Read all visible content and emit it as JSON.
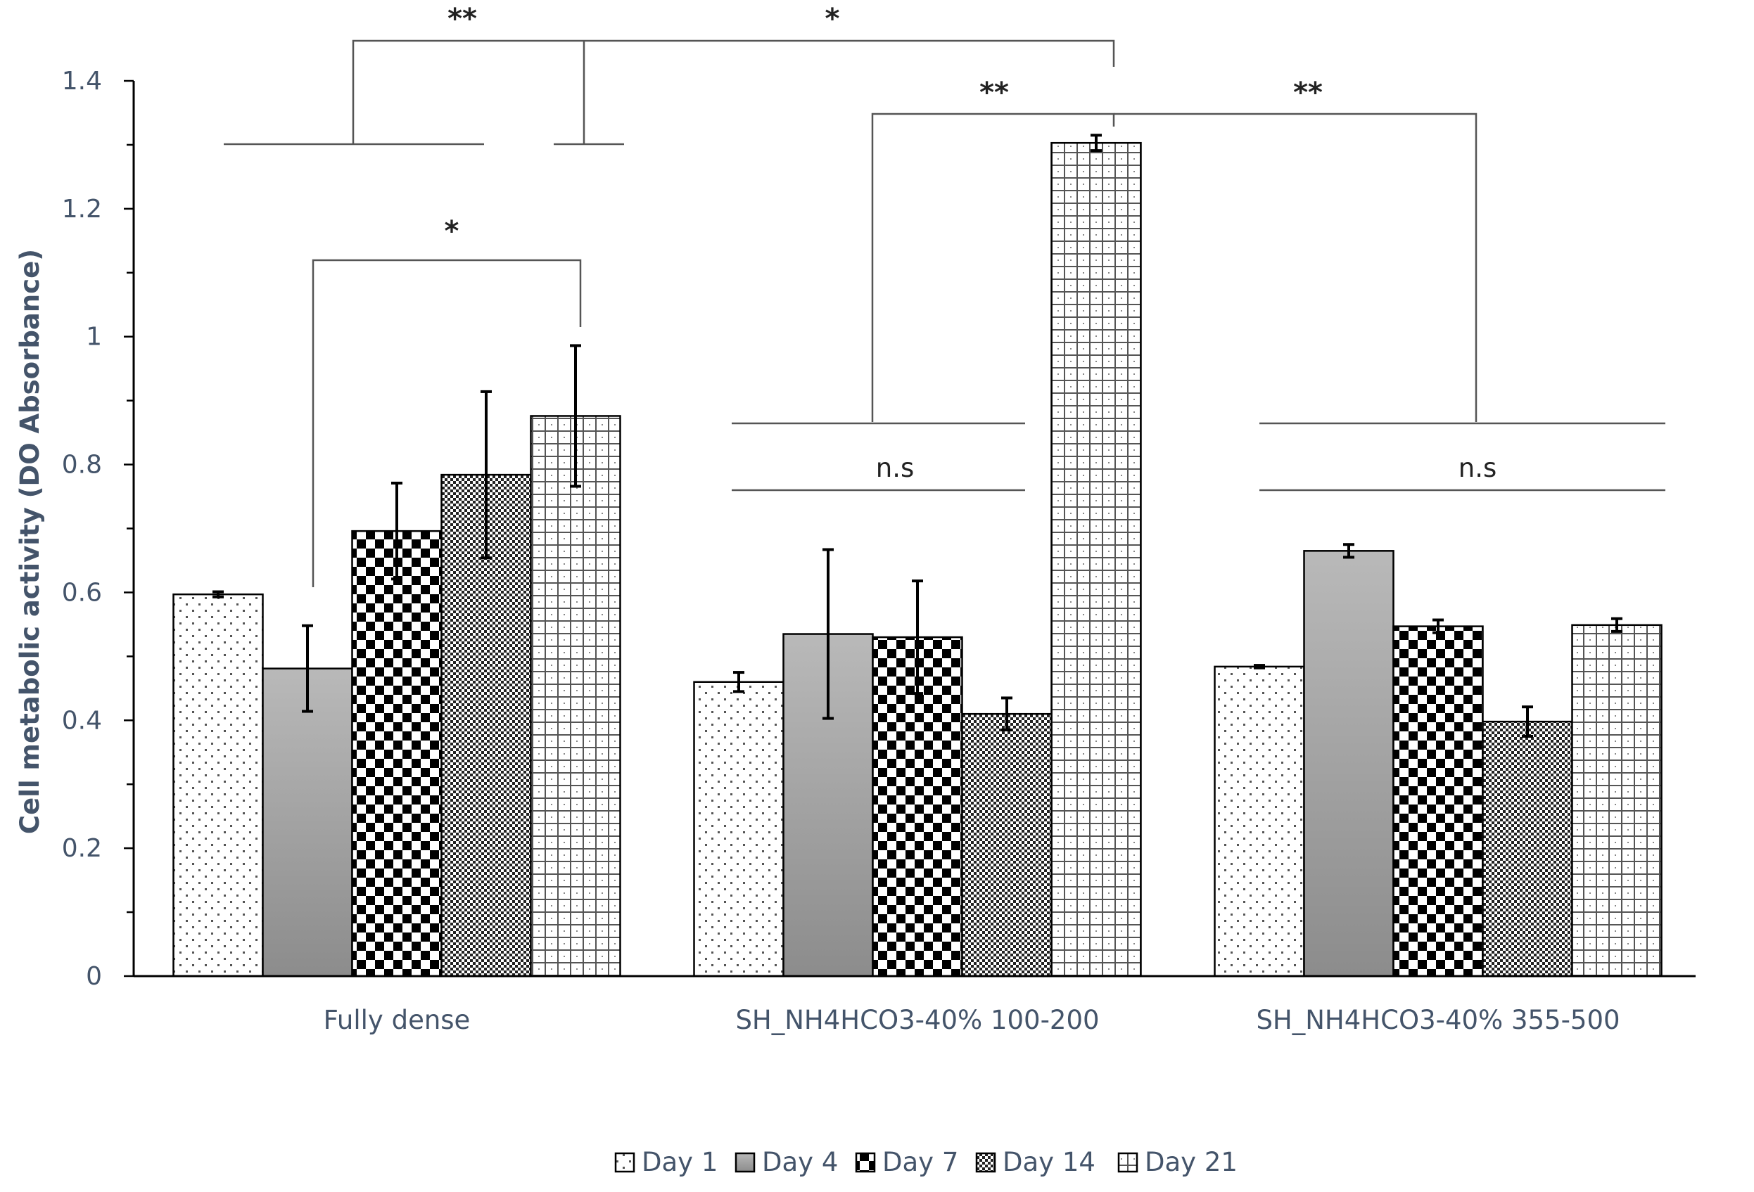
{
  "chart_data": {
    "type": "bar",
    "title": "",
    "xlabel": "",
    "ylabel": "Cell metabolic activity (DO Absorbance)",
    "ylim": [
      0,
      1.4
    ],
    "ytick_step": 0.2,
    "ytick_labels": [
      "0",
      "0.2",
      "0.4",
      "0.6",
      "0.8",
      "1",
      "1.2",
      "1.4"
    ],
    "grid": false,
    "legend_position": "bottom",
    "categories": [
      "Fully dense",
      "SH_NH4HCO3-40% 100-200",
      "SH_NH4HCO3-40% 355-500"
    ],
    "series": [
      {
        "name": "Day 1",
        "pattern": "dots",
        "values": [
          0.597,
          0.46,
          0.484
        ],
        "errors": [
          0.004,
          0.015,
          0.002
        ]
      },
      {
        "name": "Day 4",
        "pattern": "gradient",
        "values": [
          0.481,
          0.535,
          0.665
        ],
        "errors": [
          0.067,
          0.132,
          0.01
        ]
      },
      {
        "name": "Day 7",
        "pattern": "checker",
        "values": [
          0.696,
          0.53,
          0.547
        ],
        "errors": [
          0.075,
          0.088,
          0.01
        ]
      },
      {
        "name": "Day 14",
        "pattern": "fine-checker",
        "values": [
          0.784,
          0.41,
          0.398
        ],
        "errors": [
          0.13,
          0.025,
          0.023
        ]
      },
      {
        "name": "Day 21",
        "pattern": "grid",
        "values": [
          0.876,
          1.303,
          0.549
        ],
        "errors": [
          0.11,
          0.012,
          0.01
        ]
      }
    ],
    "annotations": [
      {
        "label": "**"
      },
      {
        "label": "*"
      },
      {
        "label": "*"
      },
      {
        "label": "**"
      },
      {
        "label": "**"
      },
      {
        "label": "n.s"
      },
      {
        "label": "n.s"
      }
    ],
    "colors": {
      "axis": "#000000",
      "text": "#44546A",
      "bar_stroke": "#000000",
      "bracket": "#555555"
    }
  }
}
